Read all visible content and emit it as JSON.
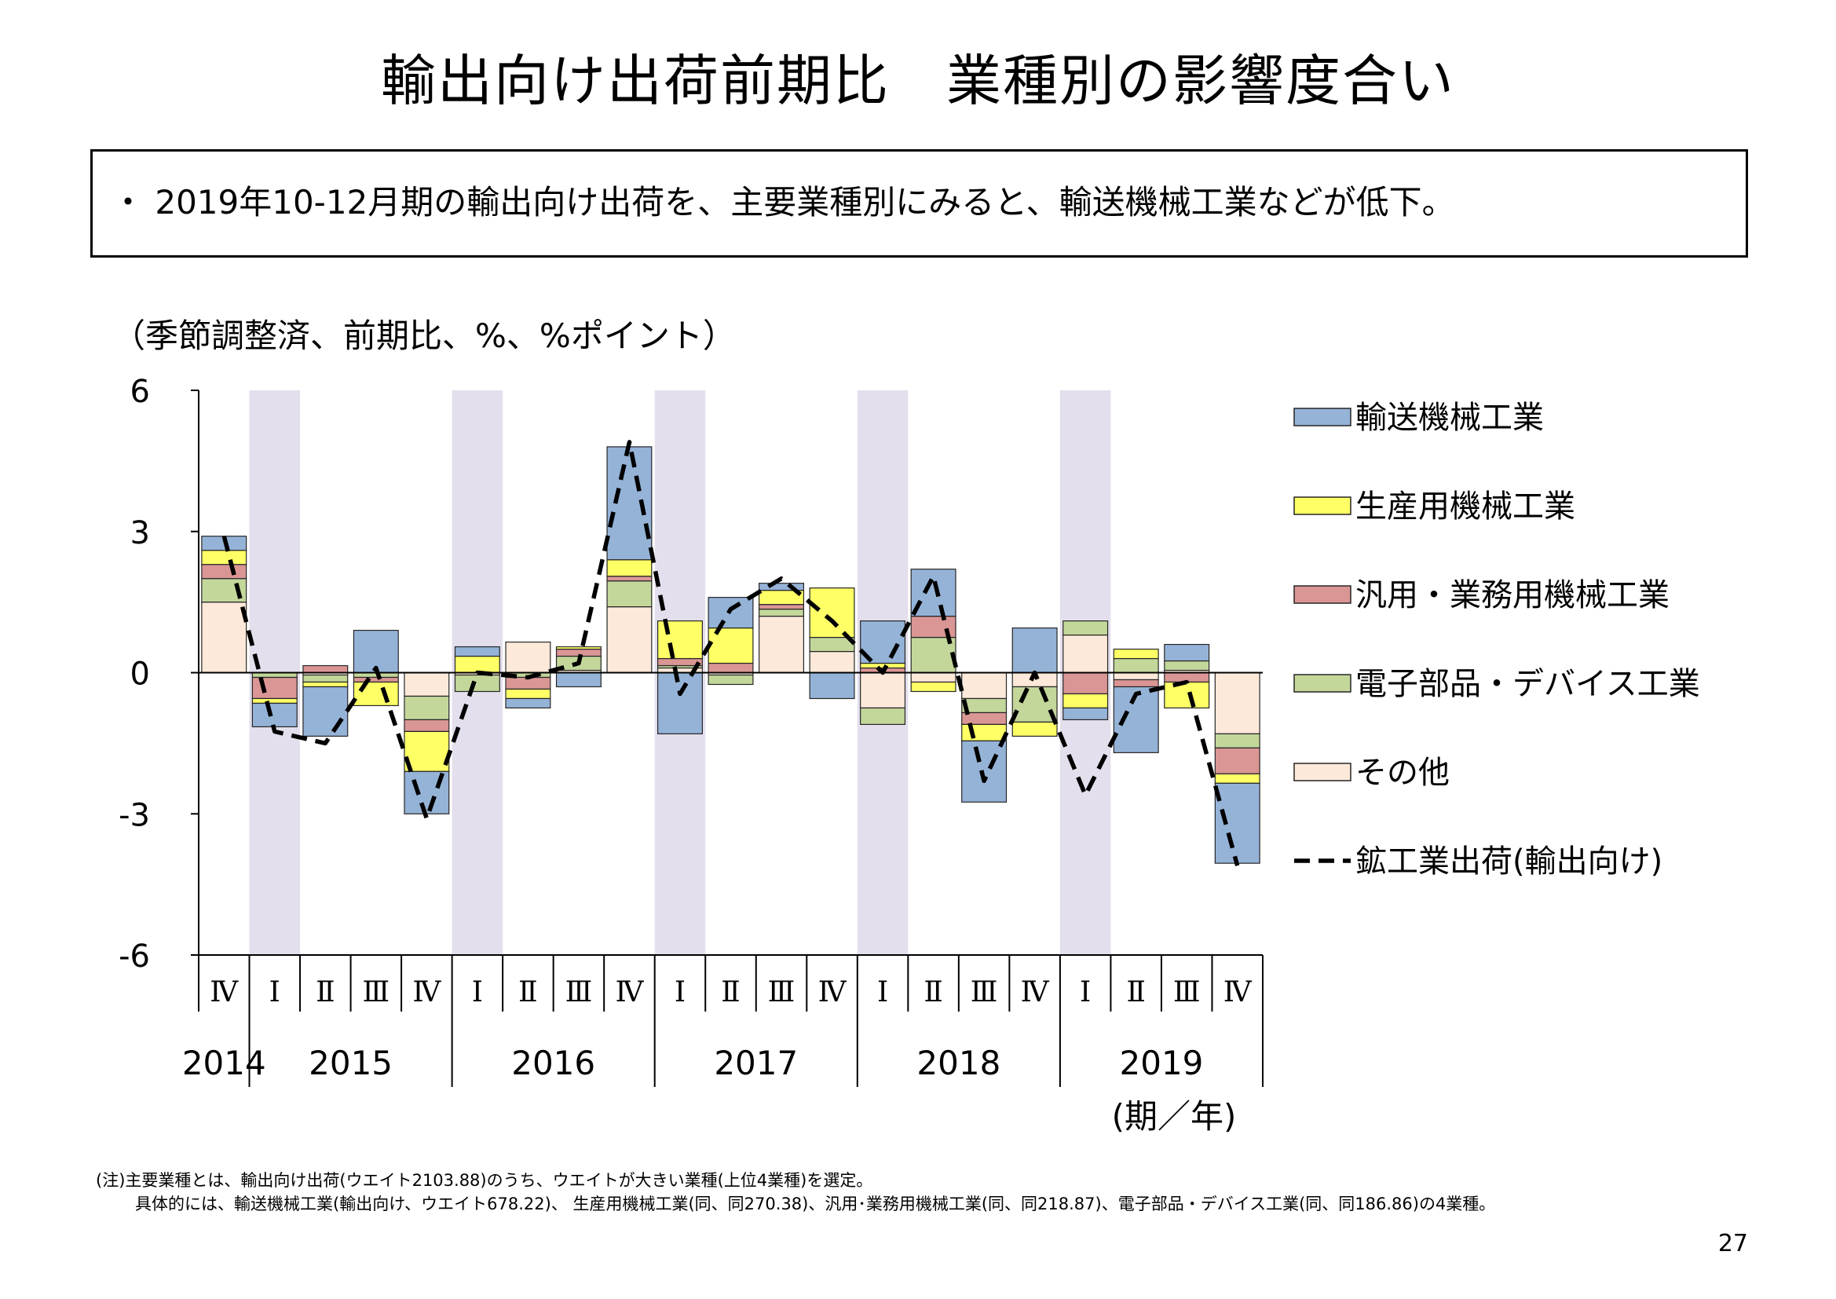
{
  "page": {
    "title": "輸出向け出荷前期比　業種別の影響度合い",
    "summary": "・ 2019年10-12月期の輸出向け出荷を、主要業種別にみると、輸送機械工業などが低下。",
    "unit_label": "（季節調整済、前期比、%、%ポイント）",
    "note_1": "(注)主要業種とは、輸出向け出荷(ウエイト2103.88)のうち、ウエイトが大きい業種(上位4業種)を選定。",
    "note_2": "具体的には、輸送機械工業(輸出向け、ウエイト678.22)、 生産用機械工業(同、同270.38)、汎用･業務用機械工業(同、同218.87)、電子部品・デバイス工業(同、同186.86)の4業種。",
    "page_number": "27"
  },
  "chart_data": {
    "type": "bar",
    "stacked": true,
    "categories": [
      "Ⅳ",
      "Ⅰ",
      "Ⅱ",
      "Ⅲ",
      "Ⅳ",
      "Ⅰ",
      "Ⅱ",
      "Ⅲ",
      "Ⅳ",
      "Ⅰ",
      "Ⅱ",
      "Ⅲ",
      "Ⅳ",
      "Ⅰ",
      "Ⅱ",
      "Ⅲ",
      "Ⅳ",
      "Ⅰ",
      "Ⅱ",
      "Ⅲ",
      "Ⅳ"
    ],
    "year_groups": [
      {
        "label": "2014",
        "start": 0,
        "end": 0
      },
      {
        "label": "2015",
        "start": 1,
        "end": 4
      },
      {
        "label": "2016",
        "start": 5,
        "end": 8
      },
      {
        "label": "2017",
        "start": 9,
        "end": 12
      },
      {
        "label": "2018",
        "start": 13,
        "end": 16
      },
      {
        "label": "2019",
        "start": 17,
        "end": 20
      }
    ],
    "x_unit_label": "(期／年)",
    "ylim": [
      -6,
      6
    ],
    "yticks": [
      6,
      3,
      0,
      -3,
      -6
    ],
    "shaded_quarter": "Ⅰ",
    "series": [
      {
        "name": "その他",
        "color": "#fde9d9",
        "values": [
          1.5,
          0.0,
          -0.05,
          0.0,
          -0.5,
          -0.05,
          0.65,
          0.05,
          1.4,
          0.1,
          -0.05,
          1.2,
          0.45,
          -0.75,
          -0.2,
          -0.55,
          -0.3,
          0.8,
          -0.15,
          0.05,
          -1.3
        ]
      },
      {
        "name": "電子部品・デバイス工業",
        "color": "#c4d79b",
        "values": [
          0.5,
          -0.1,
          -0.15,
          -0.1,
          -0.5,
          -0.35,
          -0.1,
          0.3,
          0.55,
          0.05,
          -0.2,
          0.15,
          0.3,
          -0.35,
          0.75,
          -0.3,
          -0.75,
          0.3,
          0.3,
          0.2,
          -0.3
        ]
      },
      {
        "name": "汎用・業務用機械工業",
        "color": "#da9694",
        "values": [
          0.3,
          -0.45,
          0.15,
          -0.1,
          -0.25,
          0.0,
          -0.25,
          0.15,
          0.1,
          0.15,
          0.2,
          0.1,
          0.0,
          0.1,
          0.45,
          -0.25,
          0.0,
          -0.45,
          -0.15,
          -0.2,
          -0.55
        ]
      },
      {
        "name": "生産用機械工業",
        "color": "#ffff66",
        "values": [
          0.3,
          -0.1,
          -0.1,
          -0.5,
          -0.85,
          0.35,
          -0.2,
          0.05,
          0.35,
          0.8,
          0.75,
          0.3,
          1.05,
          0.1,
          -0.2,
          -0.35,
          -0.3,
          -0.3,
          0.2,
          -0.55,
          -0.2
        ]
      },
      {
        "name": "輸送機械工業",
        "color": "#95b3d7",
        "values": [
          0.3,
          -0.5,
          -1.05,
          0.9,
          -0.9,
          0.2,
          -0.2,
          -0.3,
          2.4,
          -1.3,
          0.65,
          0.15,
          -0.55,
          0.9,
          1.0,
          -1.3,
          0.95,
          -0.25,
          -1.4,
          0.35,
          -1.7
        ]
      }
    ],
    "line": {
      "name": "鉱工業出荷(輸出向け)",
      "values": [
        2.9,
        -1.25,
        -1.5,
        0.1,
        -3.1,
        0.0,
        -0.1,
        0.2,
        4.9,
        -0.45,
        1.35,
        2.0,
        1.1,
        0.0,
        2.05,
        -2.3,
        0.0,
        -2.6,
        -0.45,
        -0.2,
        -4.1
      ]
    },
    "legend_position": "right"
  }
}
